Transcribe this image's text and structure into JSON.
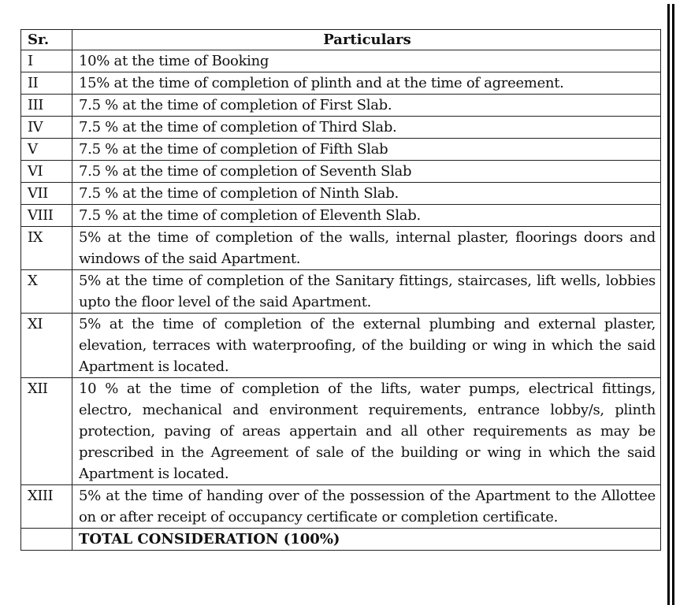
{
  "table": {
    "headers": {
      "sr": "Sr.",
      "particulars": "Particulars"
    },
    "rows": [
      {
        "sr": "I",
        "text": "10% at the time of Booking"
      },
      {
        "sr": "II",
        "text": "15% at the time of completion of plinth and at the time of agreement."
      },
      {
        "sr": "III",
        "text": "7.5 % at the time of completion of First Slab."
      },
      {
        "sr": "IV",
        "text": "7.5 % at the time of completion of Third Slab."
      },
      {
        "sr": "V",
        "text": "7.5 % at the time of completion of Fifth Slab"
      },
      {
        "sr": "VI",
        "text": "7.5 % at the time of completion of Seventh Slab"
      },
      {
        "sr": "VII",
        "text": "7.5 % at the time of completion of Ninth Slab."
      },
      {
        "sr": "VIII",
        "text": "7.5 % at the time of completion of Eleventh Slab."
      },
      {
        "sr": "IX",
        "text": "5% at the time of completion of the walls, internal plaster, floorings doors and windows of the said Apartment."
      },
      {
        "sr": "X",
        "text": "5% at the time of completion of the Sanitary fittings, staircases, lift wells, lobbies upto the floor level of the said Apartment."
      },
      {
        "sr": "XI",
        "text": "5% at the time of completion of the external plumbing and external plaster, elevation, terraces with waterproofing, of the building or wing in which the said Apartment is located."
      },
      {
        "sr": "XII",
        "text": "10 % at the time of completion of the lifts, water pumps, electrical fittings, electro, mechanical and environment requirements, entrance lobby/s, plinth protection, paving of areas appertain and all other requirements as may be prescribed in the Agreement of sale of the building or wing in which the said Apartment is located."
      },
      {
        "sr": "XIII",
        "text": "5% at the time of handing over of the possession of the Apartment to the Allottee on or after receipt of occupancy certificate or completion certificate."
      }
    ],
    "total": {
      "sr": "",
      "text": "TOTAL CONSIDERATION (100%)"
    }
  }
}
